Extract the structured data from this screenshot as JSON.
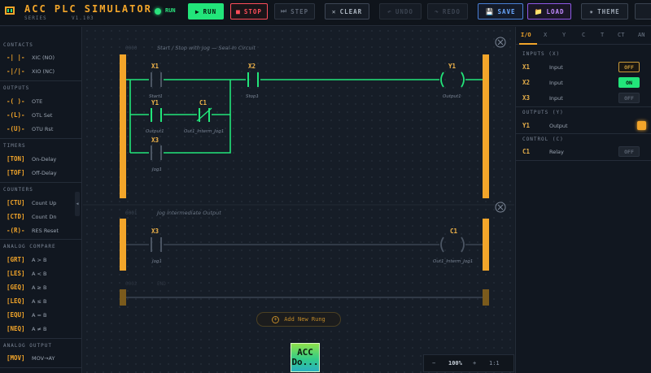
{
  "header": {
    "title": "ACC PLC SIMULATOR",
    "subtitle": "SERIES",
    "version": "V1.103",
    "run_indicator": "RUN",
    "buttons": {
      "run": "RUN",
      "stop": "STOP",
      "step": "STEP",
      "clear": "CLEAR",
      "undo": "UNDO",
      "redo": "REDO",
      "save": "SAVE",
      "load": "LOAD",
      "theme": "THEME"
    }
  },
  "palette": {
    "sections": [
      {
        "title": "CONTACTS",
        "items": [
          {
            "sym": "-| |-",
            "label": "XIC (NO)"
          },
          {
            "sym": "-|/|-",
            "label": "XIO (NC)"
          }
        ]
      },
      {
        "title": "OUTPUTS",
        "items": [
          {
            "sym": "-( )-",
            "label": "OTE"
          },
          {
            "sym": "-(L)-",
            "label": "OTL Set"
          },
          {
            "sym": "-(U)-",
            "label": "OTU Rst"
          }
        ]
      },
      {
        "title": "TIMERS",
        "items": [
          {
            "sym": "[TON]",
            "label": "On-Delay"
          },
          {
            "sym": "[TOF]",
            "label": "Off-Delay"
          }
        ]
      },
      {
        "title": "COUNTERS",
        "items": [
          {
            "sym": "[CTU]",
            "label": "Count Up"
          },
          {
            "sym": "[CTD]",
            "label": "Count Dn"
          },
          {
            "sym": "-(R)-",
            "label": "RES Reset"
          }
        ]
      },
      {
        "title": "ANALOG COMPARE",
        "items": [
          {
            "sym": "[GRT]",
            "label": "A > B"
          },
          {
            "sym": "[LES]",
            "label": "A < B"
          },
          {
            "sym": "[GEQ]",
            "label": "A ≥ B"
          },
          {
            "sym": "[LEQ]",
            "label": "A ≤ B"
          },
          {
            "sym": "[EQU]",
            "label": "A = B"
          },
          {
            "sym": "[NEQ]",
            "label": "A ≠ B"
          }
        ]
      },
      {
        "title": "ANALOG OUTPUT",
        "items": [
          {
            "sym": "[MOV]",
            "label": "MOV→AY"
          }
        ]
      }
    ]
  },
  "rungs": {
    "r0": {
      "number": "0000",
      "comment": "Start / Stop with Jog — Seal-In Circuit",
      "start_tag": "X1",
      "start_label": "Start1",
      "stop_tag": "X2",
      "stop_label": "Stop1",
      "seal_tag": "Y1",
      "seal_label": "Output1",
      "nc_tag": "C1",
      "nc_label": "Out1_Interm_Jog1",
      "jog_tag": "X3",
      "jog_label": "Jog1",
      "coil_tag": "Y1",
      "coil_label": "Output1"
    },
    "r1": {
      "number": "0001",
      "comment": "Jog Intermediate Output",
      "jog_tag": "X3",
      "jog_label": "Jog1",
      "coil_tag": "C1",
      "coil_label": "Out1_Interm_Jog1"
    },
    "r2": {
      "number": "0002",
      "comment": "END"
    }
  },
  "canvas": {
    "add_rung": "Add New Rung",
    "logo_text": "ACC Do...",
    "zoom": {
      "minus": "−",
      "value": "100%",
      "plus": "+",
      "fit": "1:1"
    }
  },
  "io_panel": {
    "tabs": [
      "I/O",
      "X",
      "Y",
      "C",
      "T",
      "CT",
      "AN"
    ],
    "inputs_title": "INPUTS (X)",
    "inputs": [
      {
        "tag": "X1",
        "desc": "Input",
        "state": "OFF"
      },
      {
        "tag": "X2",
        "desc": "Input",
        "state": "ON"
      },
      {
        "tag": "X3",
        "desc": "Input",
        "state": "OFF"
      }
    ],
    "outputs_title": "OUTPUTS (Y)",
    "outputs": [
      {
        "tag": "Y1",
        "desc": "Output"
      }
    ],
    "control_title": "CONTROL (C)",
    "control": [
      {
        "tag": "C1",
        "desc": "Relay",
        "state": "OFF"
      }
    ]
  },
  "colors": {
    "energized": "#22e57a",
    "rail": "#f2a52a",
    "idle": "#3a4452",
    "accent": "#f2a52a"
  }
}
